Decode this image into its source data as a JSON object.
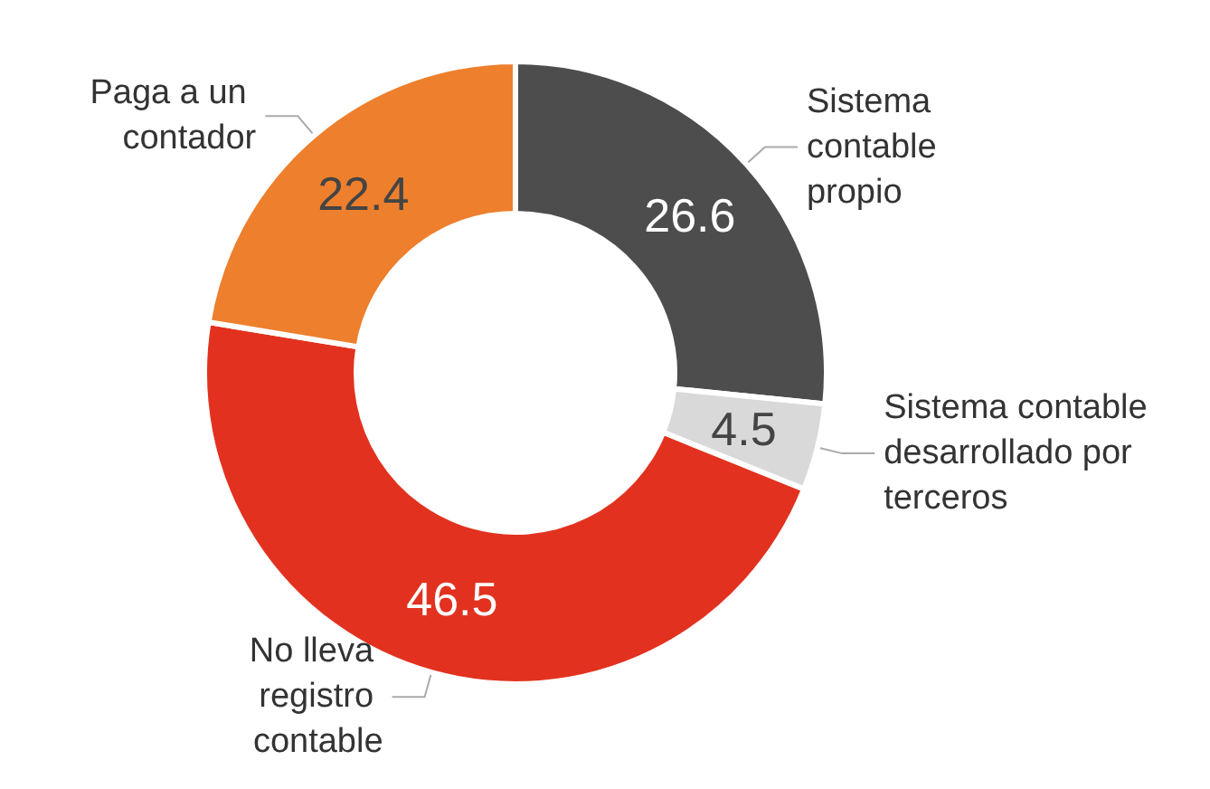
{
  "chart_data": {
    "type": "donut",
    "categories": [
      "Sistema contable propio",
      "Sistema contable desarrollado por terceros",
      "No lleva registro contable",
      "Paga a un contador"
    ],
    "values": [
      26.6,
      4.5,
      46.5,
      22.4
    ],
    "colors": [
      "#4d4d4d",
      "#d9d9d9",
      "#e2321f",
      "#ee7f2d"
    ],
    "data_labels": true,
    "legend": false
  }
}
